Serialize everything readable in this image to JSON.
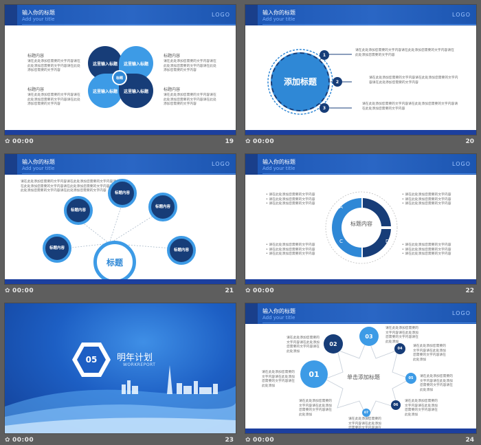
{
  "header": {
    "title": "输入你的标题",
    "subtitle": "Add your title",
    "logo": "LOGO"
  },
  "slides": [
    {
      "number": "19",
      "time": "00:00",
      "left_label_1": "标题内容",
      "left_label_2": "标题内容",
      "right_label_1": "标题内容",
      "right_label_2": "标题内容",
      "left_text_1": "请在此处添加您需要的文字内容请在此处添加您需要的文字内容请在此处添加您需要的文字内容",
      "left_text_2": "请在此处添加您需要的文字内容请在此处添加您需要的文字内容请在此处添加您需要的文字内容",
      "right_text_1": "请在此处添加您需要的文字内容请在此处添加您需要的文字内容请在此处添加您需要的文字内容",
      "right_text_2": "请在此处添加您需要的文字内容请在此处添加您需要的文字内容请在此处添加您需要的文字内容",
      "petal_tl": "这里输入标题",
      "petal_tr": "这里输入标题",
      "petal_bl": "这里输入标题",
      "petal_br": "这里输入标题",
      "center": "标题"
    },
    {
      "number": "20",
      "time": "00:00",
      "circle_title": "添加标题",
      "items": [
        {
          "num": "1",
          "text": "请在此处添加您需要的文字内容请在此处添加您需要的文字内容请在此处添加您需要的文字内容"
        },
        {
          "num": "2",
          "text": "请在此处添加您需要的文字内容请在此处添加您需要的文字内容请在此处添加您需要的文字内容"
        },
        {
          "num": "3",
          "text": "请在此处添加您需要的文字内容请在此处添加您需要的文字内容请在此处添加您需要的文字内容"
        }
      ]
    },
    {
      "number": "21",
      "time": "00:00",
      "intro": "请在此处添加您需要的文字内容请在此处添加您需要的文字内容请在此处添加您需要的文字内容请在此处添加您需要的文字内容请在此处添加您需要的文字内容请在此处添加您需要的文字内容",
      "center": "标题",
      "nodes": [
        "标题内容",
        "标题内容",
        "标题内容",
        "标题内容",
        "标题内容"
      ]
    },
    {
      "number": "22",
      "time": "00:00",
      "center": "标题内容",
      "seg_a": "A",
      "seg_b": "B",
      "seg_c": "C",
      "seg_d": "D",
      "bullets_tl": [
        "请在此处添加您需要的文字内容",
        "请在此处添加您需要的文字内容",
        "请在此处添加您需要的文字内容"
      ],
      "bullets_tr": [
        "请在此处添加您需要的文字内容",
        "请在此处添加您需要的文字内容",
        "请在此处添加您需要的文字内容"
      ],
      "bullets_bl": [
        "请在此处添加您需要的文字内容",
        "请在此处添加您需要的文字内容",
        "请在此处添加您需要的文字内容"
      ],
      "bullets_br": [
        "请在此处添加您需要的文字内容",
        "请在此处添加您需要的文字内容",
        "请在此处添加您需要的文字内容"
      ]
    },
    {
      "number": "23",
      "time": "00:00",
      "section_num": "05",
      "section_title": "明年计划",
      "section_sub": "WORKREPORT"
    },
    {
      "number": "24",
      "time": "00:00",
      "center": "单击添加标题",
      "big_num": "01",
      "num_02": "02",
      "num_03": "03",
      "num_04": "04",
      "num_05": "05",
      "num_06": "06",
      "num_07": "07",
      "text": "请在此处添加您需要的文字内容请在此处添加您需要的文字内容请在此处添加"
    }
  ],
  "colors": {
    "dark_blue": "#173d78",
    "mid_blue": "#2f88d6",
    "light_blue": "#3d9be6",
    "header_blue": "#2563c2"
  }
}
